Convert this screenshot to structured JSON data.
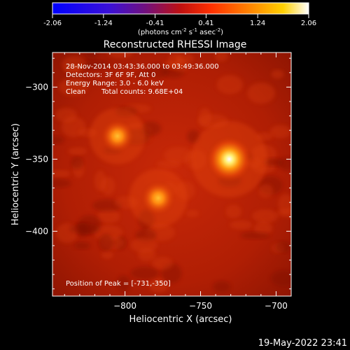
{
  "colorbar": {
    "tick_labels": [
      "-2.06",
      "-1.24",
      "-0.41",
      "0.41",
      "1.24",
      "2.06"
    ],
    "min": -2.06,
    "max": 2.06,
    "units_prefix": "(photons cm",
    "units_exp1": "-2",
    "units_mid": " s",
    "units_exp2": "-1",
    "units_mid2": " asec",
    "units_exp3": "-2",
    "units_suffix": ")"
  },
  "chart_data": {
    "type": "heatmap",
    "title": "Reconstructed RHESSI Image",
    "xlabel": "Heliocentric X (arcsec)",
    "ylabel": "Heliocentric Y (arcsec)",
    "xlim": [
      -848,
      -690
    ],
    "ylim": [
      -445,
      -276
    ],
    "x_ticks": [
      -800,
      -750,
      -700
    ],
    "y_ticks": [
      -300,
      -350,
      -400
    ],
    "x_tick_labels": [
      "−800",
      "−750",
      "−700"
    ],
    "y_tick_labels": [
      "−300",
      "−350",
      "−400"
    ],
    "colormap": "hot (RHESSI)",
    "sources": [
      {
        "x": -731,
        "y": -350,
        "relative_intensity": 1.0
      },
      {
        "x": -805,
        "y": -334,
        "relative_intensity": 0.55
      },
      {
        "x": -778,
        "y": -377,
        "relative_intensity": 0.6
      }
    ],
    "annotations": {
      "time_range": "28-Nov-2014 03:43:36.000 to 03:49:36.000",
      "detectors": "Detectors: 3F 6F 9F, Att 0",
      "energy": "Energy Range: 3.0 - 6.0 keV",
      "clean": "Clean",
      "counts": "Total counts: 9.68E+04",
      "peak": "Position of Peak = [-731,-350]"
    }
  },
  "footer": {
    "timestamp": "19-May-2022 23:41"
  },
  "colors": {
    "background": "#000000",
    "frame": "#ffffff"
  }
}
